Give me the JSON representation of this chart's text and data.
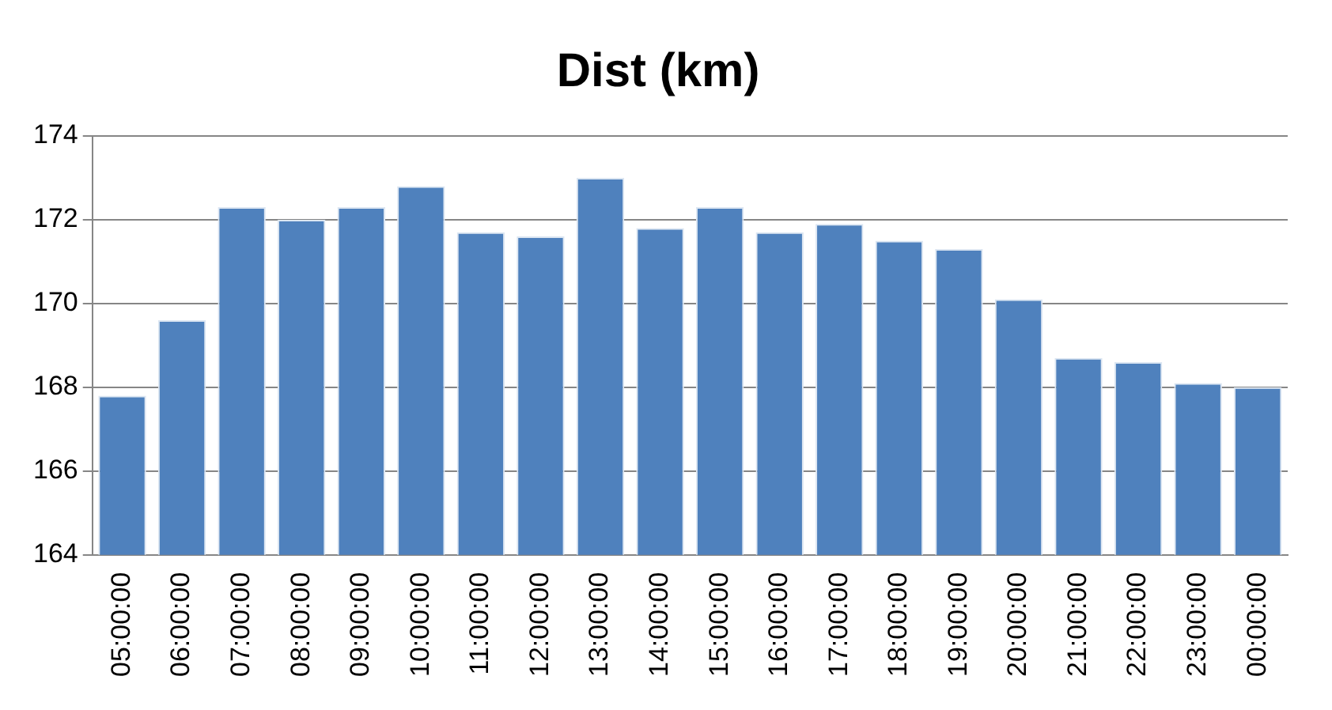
{
  "chart_data": {
    "type": "bar",
    "title": "Dist (km)",
    "categories": [
      "05:00:00",
      "06:00:00",
      "07:00:00",
      "08:00:00",
      "09:00:00",
      "10:00:00",
      "11:00:00",
      "12:00:00",
      "13:00:00",
      "14:00:00",
      "15:00:00",
      "16:00:00",
      "17:00:00",
      "18:00:00",
      "19:00:00",
      "20:00:00",
      "21:00:00",
      "22:00:00",
      "23:00:00",
      "00:00:00"
    ],
    "values": [
      167.8,
      169.6,
      172.3,
      172.0,
      172.3,
      172.8,
      171.7,
      171.6,
      173.0,
      171.8,
      172.3,
      171.7,
      171.9,
      171.5,
      171.3,
      170.1,
      168.7,
      168.6,
      168.1,
      168.0
    ],
    "color": "#4f81bd",
    "ylim": [
      164,
      174
    ],
    "yticks": [
      164,
      166,
      168,
      170,
      172,
      174
    ],
    "grid": "y"
  }
}
